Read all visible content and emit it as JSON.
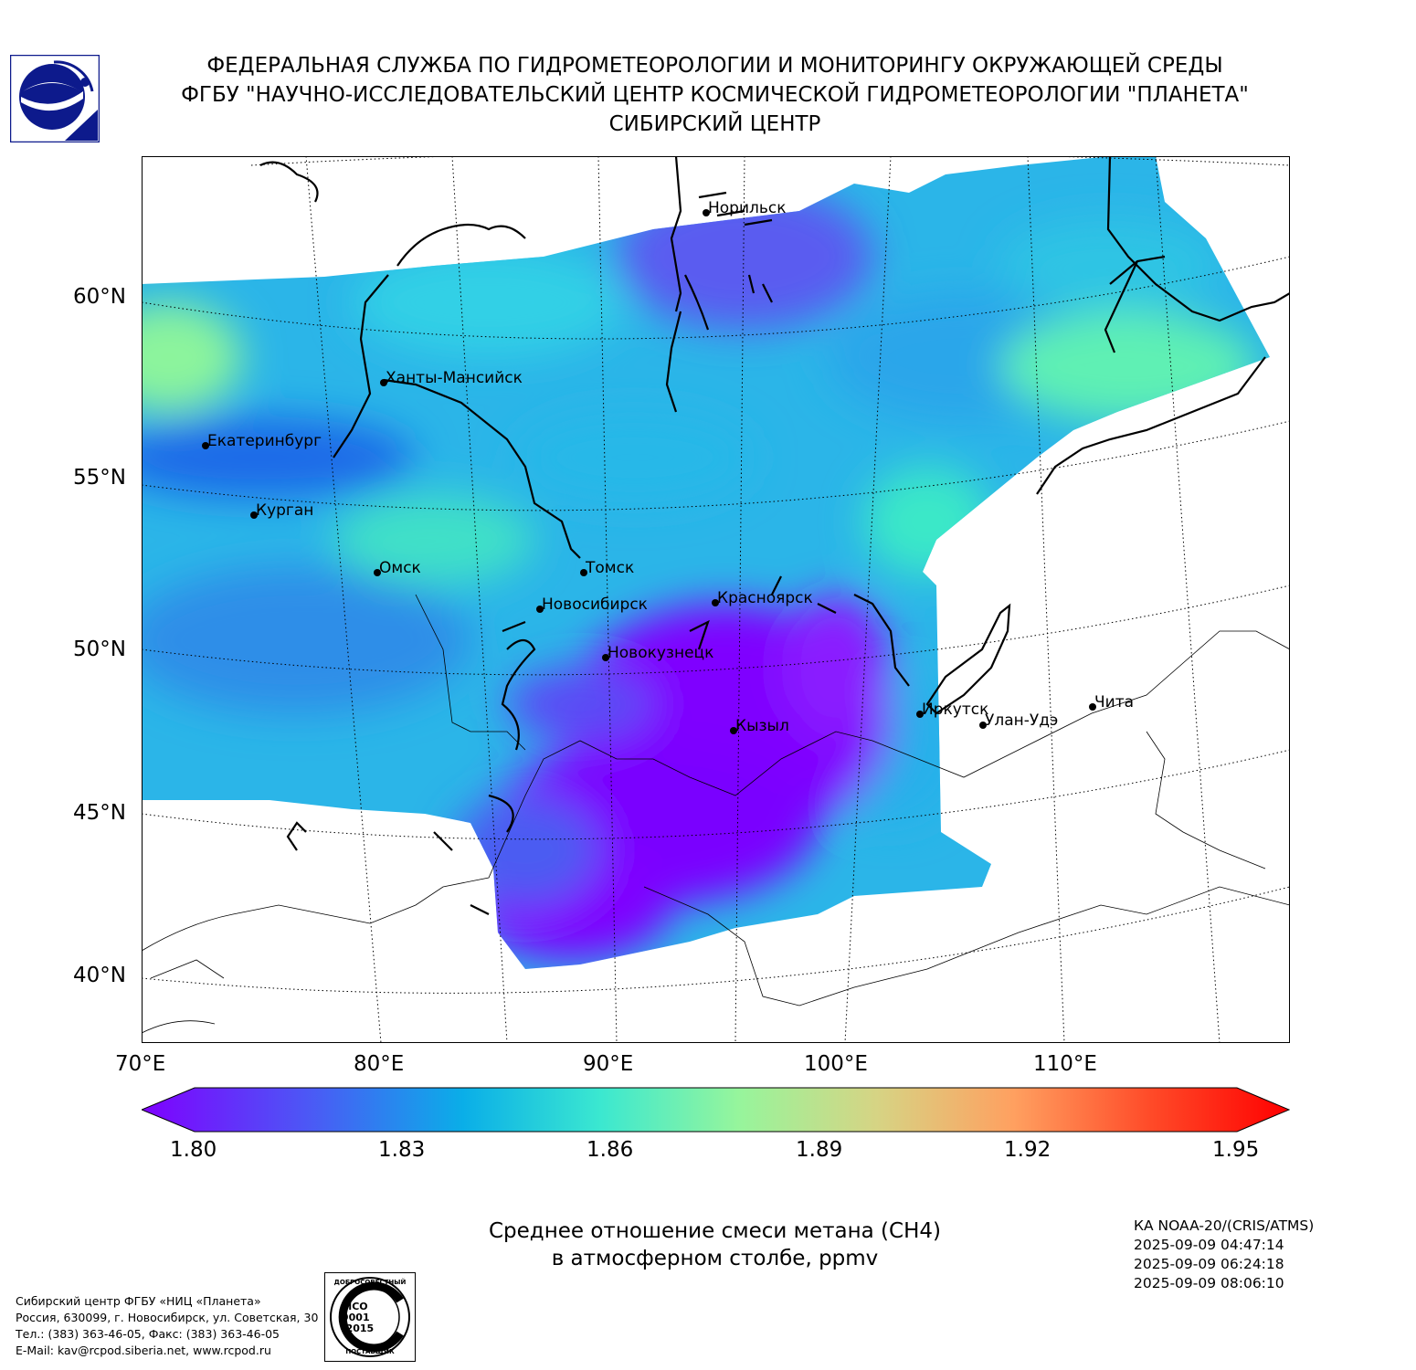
{
  "header": {
    "line1": "ФЕДЕРАЛЬНАЯ СЛУЖБА ПО ГИДРОМЕТЕОРОЛОГИИ И МОНИТОРИНГУ ОКРУЖАЮЩЕЙ СРЕДЫ",
    "line2": "ФГБУ \"НАУЧНО-ИССЛЕДОВАТЕЛЬСКИЙ ЦЕНТР КОСМИЧЕСКОЙ ГИДРОМЕТЕОРОЛОГИИ \"ПЛАНЕТА\"",
    "line3": "СИБИРСКИЙ ЦЕНТР"
  },
  "map": {
    "lat_labels": [
      "60°N",
      "55°N",
      "50°N",
      "45°N",
      "40°N"
    ],
    "lon_labels": [
      "70°E",
      "80°E",
      "90°E",
      "100°E",
      "110°E"
    ],
    "cities": [
      {
        "name": "Норильск"
      },
      {
        "name": "Ханты-Мансийск"
      },
      {
        "name": "Екатеринбург"
      },
      {
        "name": "Курган"
      },
      {
        "name": "Омск"
      },
      {
        "name": "Томск"
      },
      {
        "name": "Новосибирск"
      },
      {
        "name": "Красноярск"
      },
      {
        "name": "Новокузнецк"
      },
      {
        "name": "Кызыл"
      },
      {
        "name": "Иркутск"
      },
      {
        "name": "Улан-Удэ"
      },
      {
        "name": "Чита"
      }
    ]
  },
  "colorbar": {
    "ticks": [
      "1.80",
      "1.83",
      "1.86",
      "1.89",
      "1.92",
      "1.95"
    ],
    "min": 1.8,
    "max": 1.95
  },
  "caption": {
    "line1": "Среднее отношение смеси метана (CH4)",
    "line2": "в атмосферном столбе, ppmv"
  },
  "meta": {
    "satellite": "КА NOAA-20/(CRIS/ATMS)",
    "time1": "2025-09-09 04:47:14",
    "time2": "2025-09-09 06:24:18",
    "time3": "2025-09-09 08:06:10"
  },
  "footer": {
    "line1": "Сибирский центр ФГБУ «НИЦ «Планета»",
    "line2": "Россия, 630099, г. Новосибирск, ул. Советская, 30",
    "line3": "Тел.: (383) 363-46-05, Факс: (383) 363-46-05",
    "line4": "E-Mail: kav@rcpod.siberia.net, www.rcpod.ru"
  },
  "iso_stamp": {
    "top": "ДОБРОСОВЕСТНЫЙ",
    "line1": "ИСО",
    "line2": "9001",
    "line3": "-2015",
    "bottom": "ПОСТАВЩИК"
  },
  "colors": {
    "violet": "#7f00ff",
    "blue": "#4b6cf5",
    "cyan": "#1ec8e0",
    "aqua": "#3ae8c8",
    "green": "#9cf59c",
    "red": "#ff0000"
  }
}
